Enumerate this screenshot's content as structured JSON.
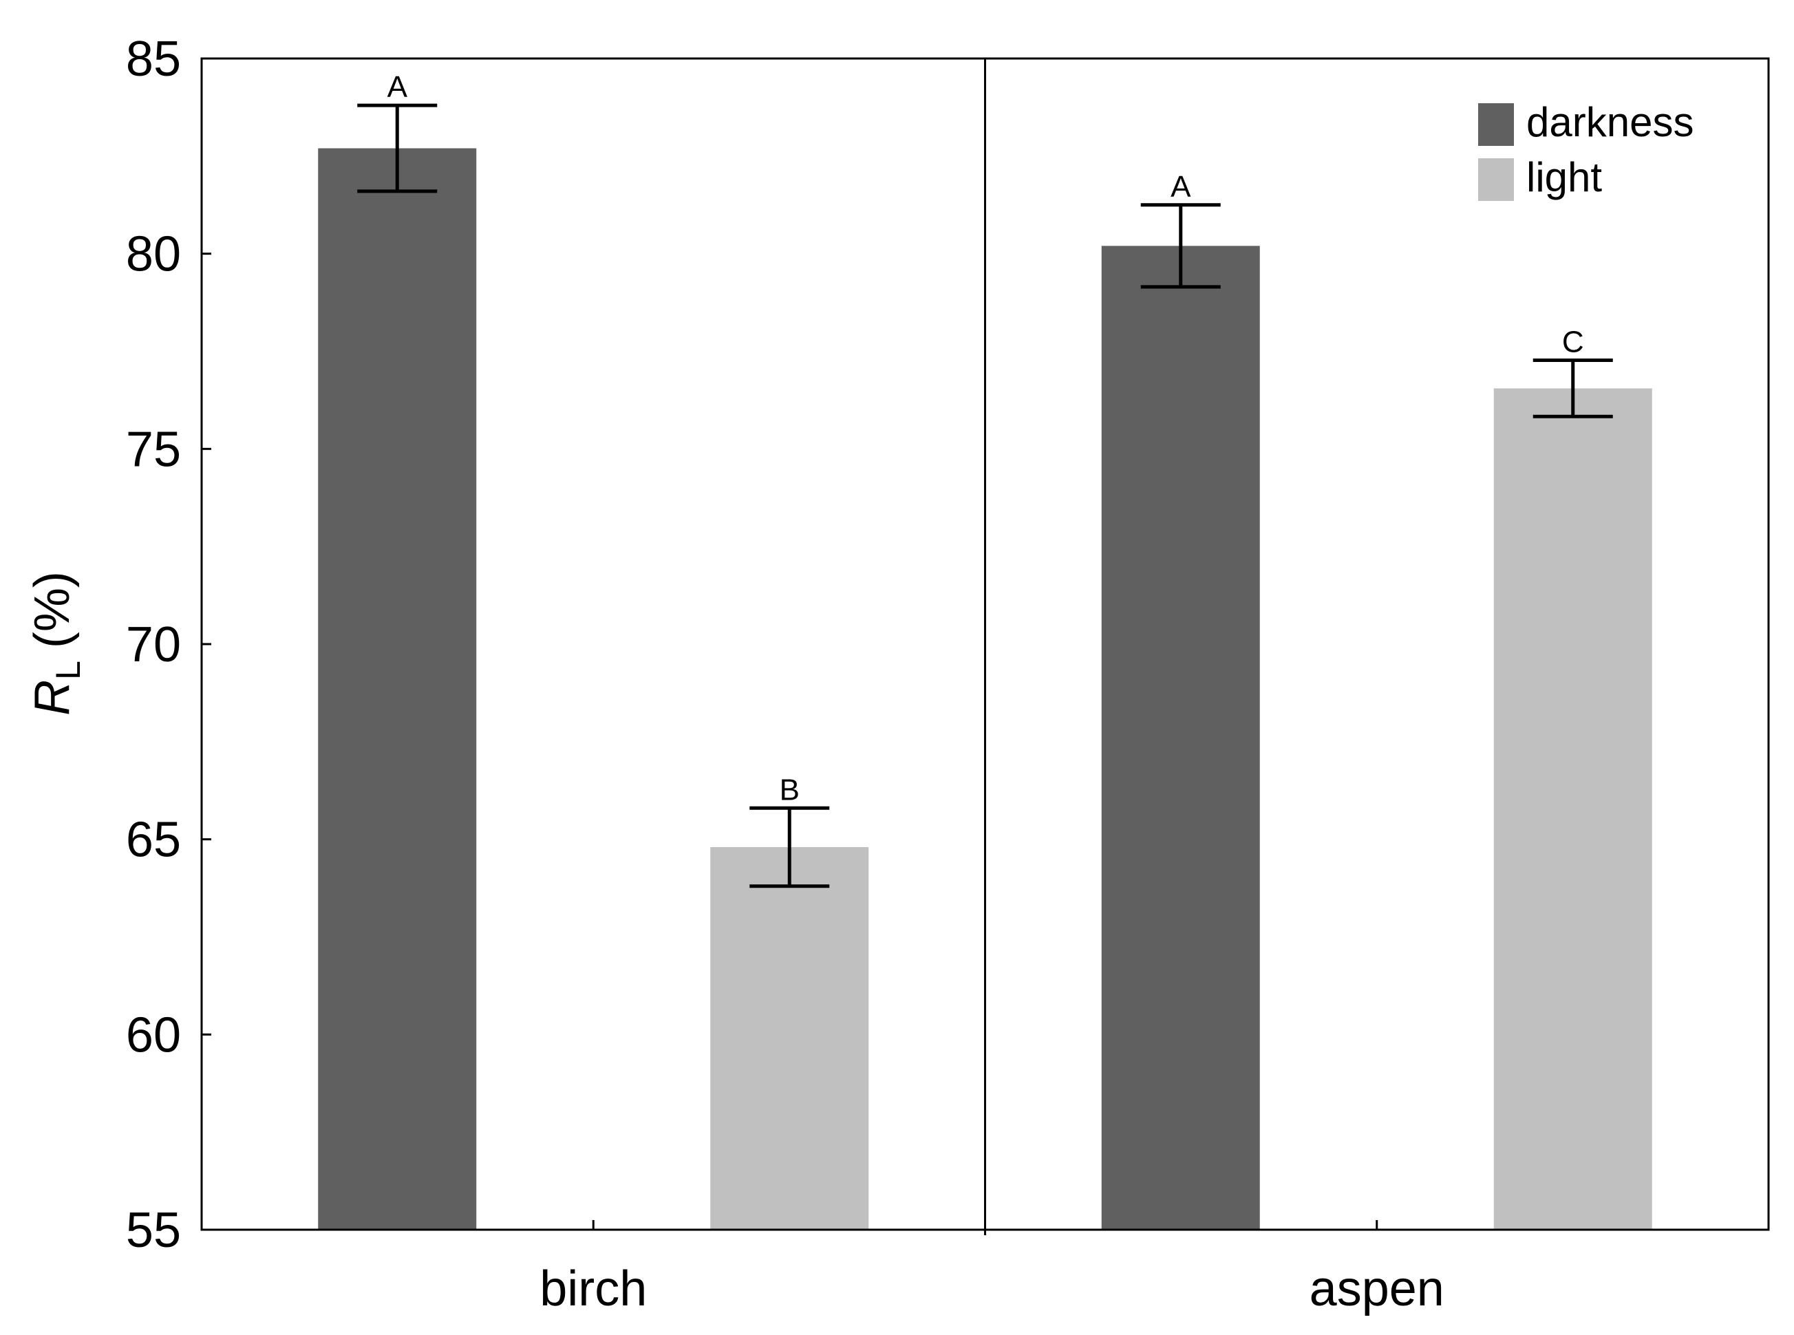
{
  "chart_data": {
    "type": "bar",
    "categories": [
      "birch",
      "aspen"
    ],
    "series": [
      {
        "name": "darkness",
        "values": [
          82.7,
          80.2
        ],
        "errors": [
          1.1,
          1.05
        ],
        "significance": [
          "A",
          "A"
        ],
        "color": "#606060"
      },
      {
        "name": "light",
        "values": [
          64.8,
          76.55
        ],
        "errors": [
          1.0,
          0.72
        ],
        "significance": [
          "B",
          "C"
        ],
        "color": "#c0c0c0"
      }
    ],
    "ylabel": {
      "symbol": "R",
      "subscript": "L",
      "unit": "(%)"
    },
    "xlabel": "",
    "ylim": [
      55,
      85
    ],
    "yticks": [
      "55",
      "60",
      "65",
      "70",
      "75",
      "80",
      "85"
    ],
    "legend_position": "top-right",
    "grid": false,
    "divider_between_categories": true
  }
}
